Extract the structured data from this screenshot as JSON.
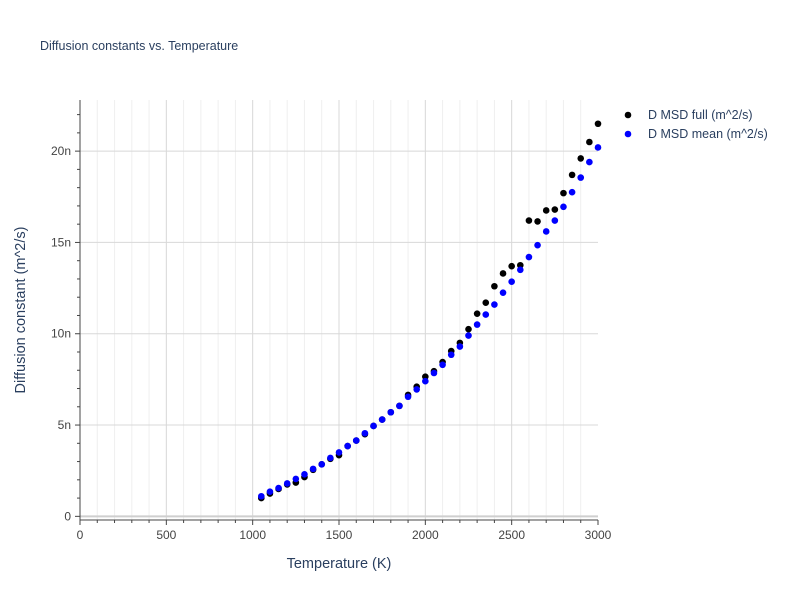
{
  "chart_data": {
    "type": "scatter",
    "title": "Diffusion constants vs. Temperature",
    "xlabel": "Temperature (K)",
    "ylabel": "Diffusion constant (m^2/s)",
    "xlim": [
      0,
      3000
    ],
    "ylim": [
      -0.2,
      22.8
    ],
    "x_ticks": [
      0,
      500,
      1000,
      1500,
      2000,
      2500,
      3000
    ],
    "x_tick_labels": [
      "0",
      "500",
      "1000",
      "1500",
      "2000",
      "2500",
      "3000"
    ],
    "y_ticks": [
      0,
      5,
      10,
      15,
      20
    ],
    "y_tick_labels": [
      "0",
      "5n",
      "10n",
      "15n",
      "20n"
    ],
    "grid": true,
    "legend_position": "top-right",
    "series": [
      {
        "name": "D MSD full (m^2/s)",
        "color": "#000000",
        "x": [
          1050,
          1100,
          1150,
          1200,
          1250,
          1300,
          1350,
          1400,
          1450,
          1500,
          1550,
          1600,
          1650,
          1700,
          1750,
          1800,
          1850,
          1900,
          1950,
          2000,
          2050,
          2100,
          2150,
          2200,
          2250,
          2300,
          2350,
          2400,
          2450,
          2500,
          2550,
          2600,
          2650,
          2700,
          2750,
          2800,
          2850,
          2900,
          2950,
          3000
        ],
        "y": [
          1.0,
          1.25,
          1.5,
          1.75,
          1.85,
          2.15,
          2.55,
          2.85,
          3.15,
          3.35,
          3.85,
          4.15,
          4.5,
          4.95,
          5.3,
          5.7,
          6.05,
          6.65,
          7.1,
          7.65,
          7.95,
          8.45,
          9.05,
          9.5,
          10.25,
          11.1,
          11.7,
          12.6,
          13.3,
          13.7,
          13.75,
          16.2,
          16.15,
          16.75,
          16.8,
          17.7,
          18.7,
          19.6,
          20.5,
          21.5
        ]
      },
      {
        "name": "D MSD mean (m^2/s)",
        "color": "#0000ff",
        "x": [
          1050,
          1100,
          1150,
          1200,
          1250,
          1300,
          1350,
          1400,
          1450,
          1500,
          1550,
          1600,
          1650,
          1700,
          1750,
          1800,
          1850,
          1900,
          1950,
          2000,
          2050,
          2100,
          2150,
          2200,
          2250,
          2300,
          2350,
          2400,
          2450,
          2500,
          2550,
          2600,
          2650,
          2700,
          2750,
          2800,
          2850,
          2900,
          2950,
          3000
        ],
        "y": [
          1.1,
          1.35,
          1.55,
          1.8,
          2.05,
          2.3,
          2.6,
          2.85,
          3.2,
          3.5,
          3.85,
          4.15,
          4.55,
          4.95,
          5.3,
          5.7,
          6.05,
          6.55,
          6.95,
          7.4,
          7.85,
          8.3,
          8.85,
          9.3,
          9.9,
          10.5,
          11.05,
          11.6,
          12.25,
          12.85,
          13.5,
          14.2,
          14.85,
          15.6,
          16.2,
          16.95,
          17.75,
          18.55,
          19.4,
          20.2
        ]
      }
    ]
  }
}
